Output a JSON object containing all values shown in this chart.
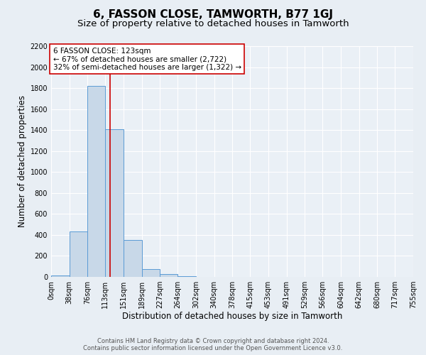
{
  "title": "6, FASSON CLOSE, TAMWORTH, B77 1GJ",
  "subtitle": "Size of property relative to detached houses in Tamworth",
  "xlabel": "Distribution of detached houses by size in Tamworth",
  "ylabel": "Number of detached properties",
  "bar_edges": [
    0,
    38,
    76,
    113,
    151,
    189,
    227,
    264,
    302,
    340,
    378,
    415,
    453,
    491,
    529,
    566,
    604,
    642,
    680,
    717,
    755
  ],
  "bar_heights": [
    15,
    430,
    1820,
    1410,
    350,
    75,
    25,
    10,
    0,
    0,
    0,
    0,
    0,
    0,
    0,
    0,
    0,
    0,
    0,
    0
  ],
  "bar_color": "#c8d8e8",
  "bar_edgecolor": "#5b9bd5",
  "property_line_x": 123,
  "property_line_color": "#cc0000",
  "annotation_title": "6 FASSON CLOSE: 123sqm",
  "annotation_line1": "← 67% of detached houses are smaller (2,722)",
  "annotation_line2": "32% of semi-detached houses are larger (1,322) →",
  "annotation_box_color": "#ffffff",
  "annotation_box_edgecolor": "#cc0000",
  "tick_labels": [
    "0sqm",
    "38sqm",
    "76sqm",
    "113sqm",
    "151sqm",
    "189sqm",
    "227sqm",
    "264sqm",
    "302sqm",
    "340sqm",
    "378sqm",
    "415sqm",
    "453sqm",
    "491sqm",
    "529sqm",
    "566sqm",
    "604sqm",
    "642sqm",
    "680sqm",
    "717sqm",
    "755sqm"
  ],
  "ylim": [
    0,
    2200
  ],
  "yticks": [
    0,
    200,
    400,
    600,
    800,
    1000,
    1200,
    1400,
    1600,
    1800,
    2000,
    2200
  ],
  "footnote1": "Contains HM Land Registry data © Crown copyright and database right 2024.",
  "footnote2": "Contains public sector information licensed under the Open Government Licence v3.0.",
  "bg_color": "#e8eef4",
  "plot_bg_color": "#eaf0f6",
  "grid_color": "#ffffff",
  "title_fontsize": 11,
  "subtitle_fontsize": 9.5,
  "axis_label_fontsize": 8.5,
  "tick_fontsize": 7,
  "annotation_fontsize": 7.5,
  "footnote_fontsize": 6
}
